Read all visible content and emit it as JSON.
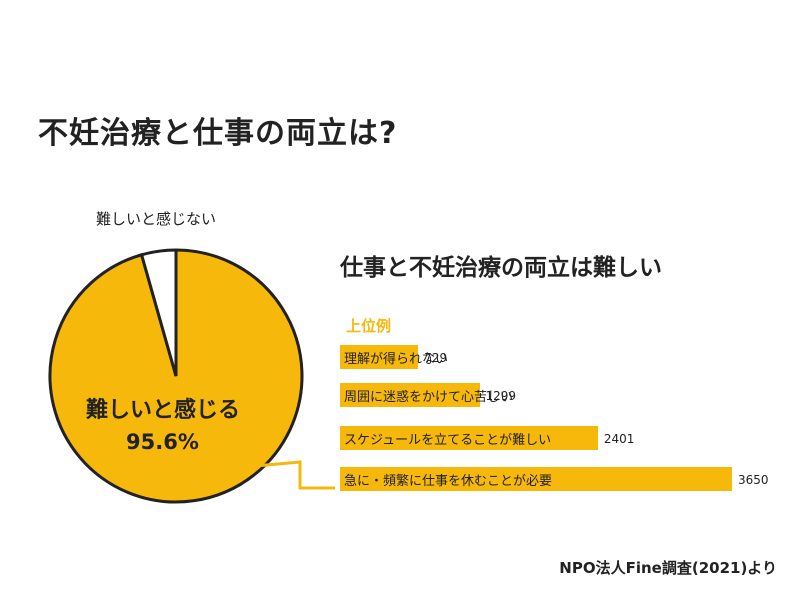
{
  "title": "不妊治療と仕事の両立は?",
  "source": "NPO法人Fine調査(2021)より",
  "colors": {
    "accent": "#f7b80c",
    "ink": "#222222",
    "background": "#ffffff"
  },
  "chart_data": [
    {
      "type": "pie",
      "slices": [
        {
          "label": "難しいと感じる",
          "value": 95.6,
          "value_label": "95.6%"
        },
        {
          "label": "難しいと感じない",
          "value": 4.4
        }
      ]
    },
    {
      "type": "bar",
      "orientation": "horizontal",
      "title": "仕事と不妊治療の両立は難しい",
      "subtitle": "上位例",
      "categories": [
        "理解が得られない",
        "周囲に迷惑をかけて心苦しい",
        "スケジュールを立てることが難しい",
        "急に・頻繁に仕事を休むことが必要"
      ],
      "values": [
        729,
        1299,
        2401,
        3650
      ]
    }
  ]
}
